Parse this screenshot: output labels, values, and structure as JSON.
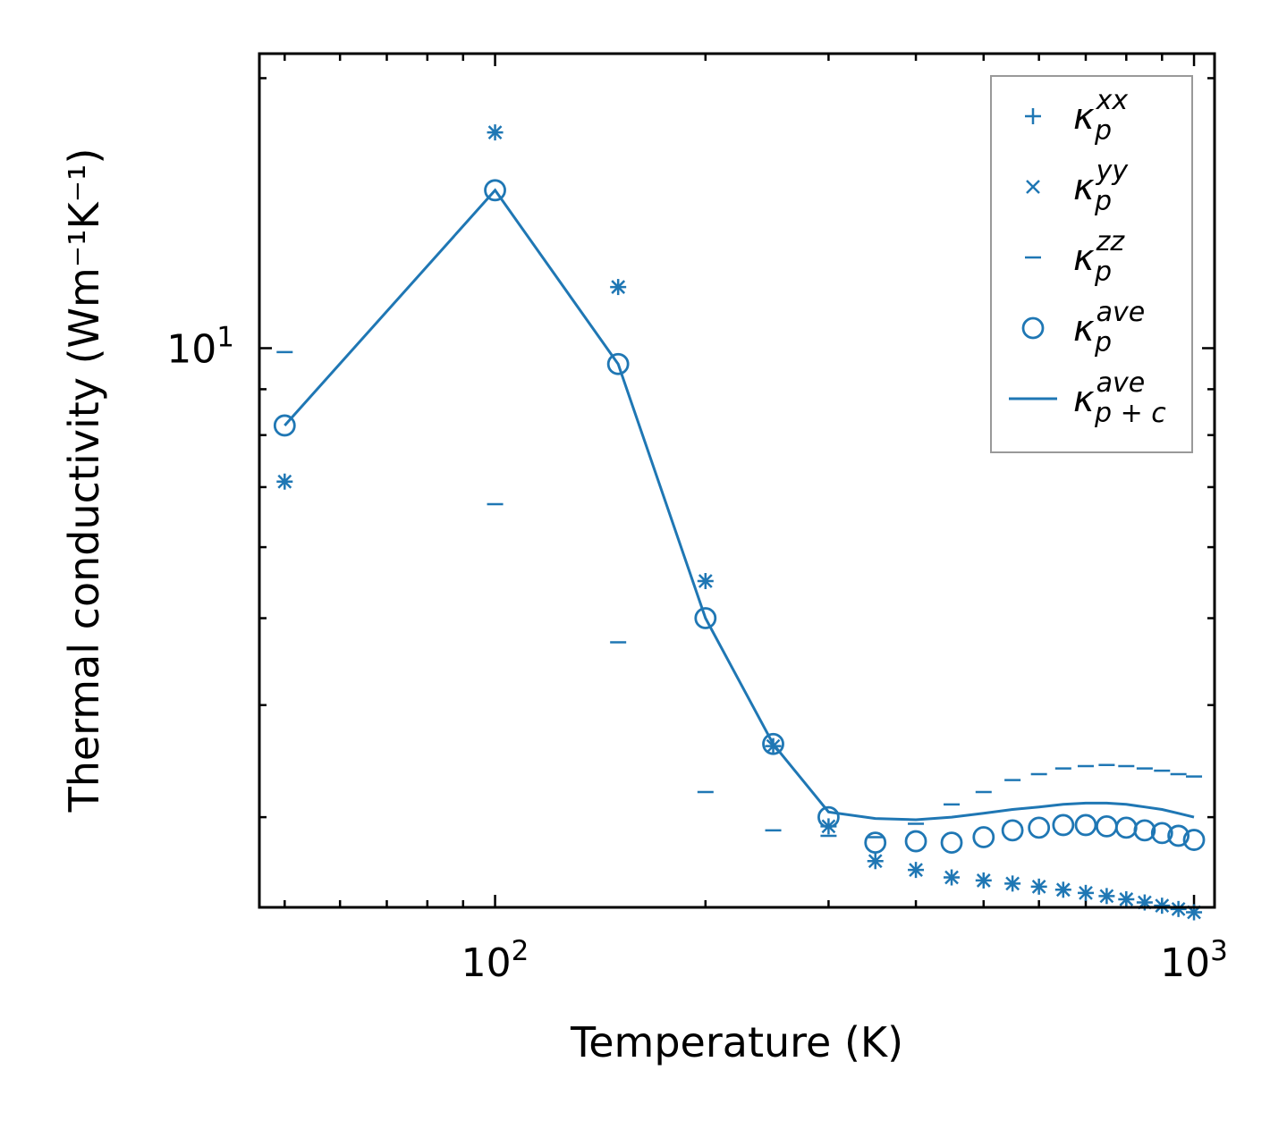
{
  "chart_data": {
    "type": "scatter",
    "title": "",
    "xlabel": "Temperature (K)",
    "ylabel": "Thermal conductivity (Wm⁻¹K⁻¹)",
    "xscale": "log",
    "yscale": "log",
    "xlim": [
      46,
      1070
    ],
    "ylim": [
      2.38,
      21.3
    ],
    "grid": false,
    "legend_position": "top-right",
    "color": "#1f77b4",
    "x_ticks": [
      {
        "value": 100,
        "base": "10",
        "exp": "2"
      },
      {
        "value": 1000,
        "base": "10",
        "exp": "3"
      }
    ],
    "y_ticks": [
      {
        "value": 10,
        "base": "10",
        "exp": "1"
      }
    ],
    "x": [
      50,
      100,
      150,
      200,
      250,
      300,
      350,
      400,
      450,
      500,
      550,
      600,
      650,
      700,
      750,
      800,
      850,
      900,
      950,
      1000
    ],
    "series": [
      {
        "name": "kappa_p^xx",
        "legend_base": "κ",
        "legend_sub": "p",
        "legend_sup": "xx",
        "marker": "plus",
        "values": [
          7.1,
          17.4,
          11.7,
          5.5,
          3.6,
          2.93,
          2.68,
          2.62,
          2.57,
          2.55,
          2.53,
          2.51,
          2.49,
          2.47,
          2.45,
          2.43,
          2.41,
          2.39,
          2.37,
          2.35
        ]
      },
      {
        "name": "kappa_p^yy",
        "legend_base": "κ",
        "legend_sub": "p",
        "legend_sup": "yy",
        "marker": "x",
        "values": [
          7.1,
          17.4,
          11.7,
          5.5,
          3.6,
          2.93,
          2.68,
          2.62,
          2.57,
          2.55,
          2.53,
          2.51,
          2.49,
          2.47,
          2.45,
          2.43,
          2.41,
          2.39,
          2.37,
          2.35
        ]
      },
      {
        "name": "kappa_p^zz",
        "legend_base": "κ",
        "legend_sub": "p",
        "legend_sup": "zz",
        "marker": "hline",
        "values": [
          9.9,
          6.7,
          4.7,
          3.2,
          2.9,
          2.86,
          2.85,
          2.95,
          3.1,
          3.2,
          3.3,
          3.35,
          3.4,
          3.42,
          3.43,
          3.42,
          3.4,
          3.38,
          3.35,
          3.33
        ]
      },
      {
        "name": "kappa_p^ave",
        "legend_base": "κ",
        "legend_sub": "p",
        "legend_sup": "ave",
        "marker": "circle",
        "values": [
          8.2,
          15.0,
          9.6,
          5.0,
          3.62,
          3.0,
          2.81,
          2.82,
          2.81,
          2.85,
          2.9,
          2.92,
          2.94,
          2.94,
          2.93,
          2.92,
          2.9,
          2.88,
          2.86,
          2.83
        ]
      },
      {
        "name": "kappa_p+c^ave",
        "legend_base": "κ",
        "legend_sub": "p + c",
        "legend_sup": "ave",
        "marker": "line",
        "values": [
          8.2,
          15.0,
          9.6,
          5.0,
          3.62,
          3.04,
          2.99,
          2.98,
          3.0,
          3.03,
          3.06,
          3.08,
          3.1,
          3.11,
          3.11,
          3.1,
          3.08,
          3.06,
          3.03,
          3.0
        ]
      }
    ]
  }
}
